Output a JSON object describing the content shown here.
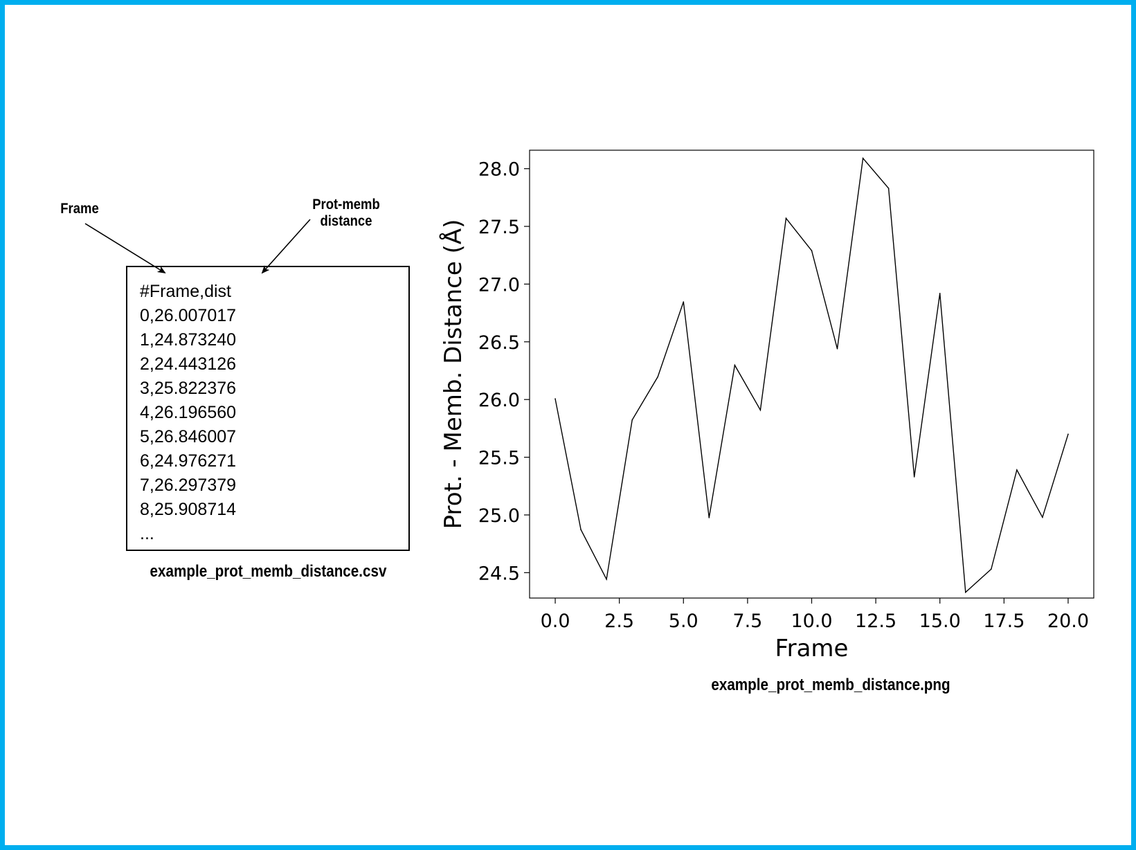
{
  "annotations": {
    "frame_label": "Frame",
    "dist_label_line1": "Prot-memb",
    "dist_label_line2": "distance"
  },
  "csv": {
    "lines": [
      "#Frame,dist",
      "0,26.007017",
      "1,24.873240",
      "2,24.443126",
      "3,25.822376",
      "4,26.196560",
      "5,26.846007",
      "6,24.976271",
      "7,26.297379",
      "8,25.908714",
      "..."
    ],
    "caption": "example_prot_memb_distance.csv"
  },
  "plot_caption": "example_prot_memb_distance.png",
  "chart_data": {
    "type": "line",
    "title": "",
    "xlabel": "Frame",
    "ylabel": "Prot. - Memb. Distance (Å)",
    "xlim": [
      -1.0,
      21.0
    ],
    "ylim": [
      24.28,
      28.16
    ],
    "x_ticks": [
      0.0,
      2.5,
      5.0,
      7.5,
      10.0,
      12.5,
      15.0,
      17.5,
      20.0
    ],
    "x_tick_labels": [
      "0.0",
      "2.5",
      "5.0",
      "7.5",
      "10.0",
      "12.5",
      "15.0",
      "17.5",
      "20.0"
    ],
    "y_ticks": [
      24.5,
      25.0,
      25.5,
      26.0,
      26.5,
      27.0,
      27.5,
      28.0
    ],
    "y_tick_labels": [
      "24.5",
      "25.0",
      "25.5",
      "26.0",
      "26.5",
      "27.0",
      "27.5",
      "28.0"
    ],
    "grid": false,
    "line_color": "#000000",
    "x": [
      0,
      1,
      2,
      3,
      4,
      5,
      6,
      7,
      8,
      9,
      10,
      11,
      12,
      13,
      14,
      15,
      16,
      17,
      18,
      19,
      20
    ],
    "y": [
      26.007017,
      24.87324,
      24.443126,
      25.822376,
      26.19656,
      26.846007,
      24.976271,
      26.297379,
      25.908714,
      27.57,
      27.29,
      26.44,
      28.09,
      27.83,
      25.33,
      26.92,
      24.33,
      24.53,
      25.39,
      24.98,
      25.7
    ]
  }
}
